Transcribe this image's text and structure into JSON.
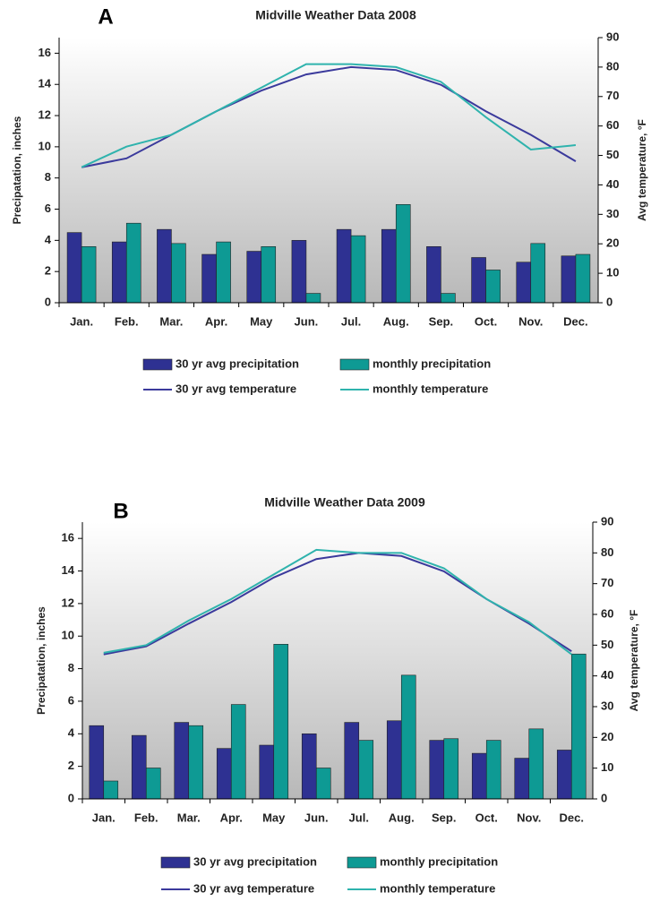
{
  "chart_data": [
    {
      "type": "bar",
      "panel_label": "A",
      "title": "Midville Weather Data 2008",
      "y_label": "Precipatation, inches",
      "y2_label": "Avg temperature, °F",
      "categories": [
        "Jan.",
        "Feb.",
        "Mar.",
        "Apr.",
        "May",
        "Jun.",
        "Jul.",
        "Aug.",
        "Sep.",
        "Oct.",
        "Nov.",
        "Dec."
      ],
      "ylim": [
        0,
        17
      ],
      "yticks": [
        0,
        2,
        4,
        6,
        8,
        10,
        12,
        14,
        16
      ],
      "y2lim": [
        0,
        90
      ],
      "y2ticks": [
        0,
        10,
        20,
        30,
        40,
        50,
        60,
        70,
        80,
        90
      ],
      "series": [
        {
          "name": "30 yr avg precipitation",
          "type": "bar",
          "color": "#2e3192",
          "values": [
            4.5,
            3.9,
            4.7,
            3.1,
            3.3,
            4.0,
            4.7,
            4.7,
            3.6,
            2.9,
            2.6,
            3.0
          ]
        },
        {
          "name": "monthly precipitation",
          "type": "bar",
          "color": "#0e9a94",
          "values": [
            3.6,
            5.1,
            3.8,
            3.9,
            3.6,
            0.6,
            4.3,
            6.3,
            0.6,
            2.1,
            3.8,
            3.1
          ]
        },
        {
          "name": "30 yr avg temperature",
          "type": "line",
          "axis": "y2",
          "color": "#3b3a9c",
          "values": [
            46,
            49,
            57,
            65,
            72,
            77.5,
            80,
            79,
            74,
            65,
            57,
            48
          ]
        },
        {
          "name": "monthly temperature",
          "type": "line",
          "axis": "y2",
          "color": "#2fb3ad",
          "values": [
            46,
            53,
            57,
            65,
            73,
            81,
            81,
            80,
            75,
            63,
            52,
            53.5
          ]
        }
      ]
    },
    {
      "type": "bar",
      "panel_label": "B",
      "title": "Midville Weather Data 2009",
      "y_label": "Precipatation, inches",
      "y2_label": "Avg temperature, °F",
      "categories": [
        "Jan.",
        "Feb.",
        "Mar.",
        "Apr.",
        "May",
        "Jun.",
        "Jul.",
        "Aug.",
        "Sep.",
        "Oct.",
        "Nov.",
        "Dec."
      ],
      "ylim": [
        0,
        17
      ],
      "yticks": [
        0,
        2,
        4,
        6,
        8,
        10,
        12,
        14,
        16
      ],
      "y2lim": [
        0,
        90
      ],
      "y2ticks": [
        0,
        10,
        20,
        30,
        40,
        50,
        60,
        70,
        80,
        90
      ],
      "series": [
        {
          "name": "30 yr avg precipitation",
          "type": "bar",
          "color": "#2e3192",
          "values": [
            4.5,
            3.9,
            4.7,
            3.1,
            3.3,
            4.0,
            4.7,
            4.8,
            3.6,
            2.8,
            2.5,
            3.0
          ]
        },
        {
          "name": "monthly precipitation",
          "type": "bar",
          "color": "#0e9a94",
          "values": [
            1.1,
            1.9,
            4.5,
            5.8,
            9.5,
            1.9,
            3.6,
            7.6,
            3.7,
            3.6,
            4.3,
            8.9
          ]
        },
        {
          "name": "30 yr avg temperature",
          "type": "line",
          "axis": "y2",
          "color": "#3b3a9c",
          "values": [
            47,
            49.6,
            57,
            64,
            72,
            78,
            80,
            79,
            74,
            65,
            57,
            48
          ]
        },
        {
          "name": "monthly temperature",
          "type": "line",
          "axis": "y2",
          "color": "#2fb3ad",
          "values": [
            47.5,
            50,
            58,
            65,
            73,
            81,
            80,
            80,
            75,
            65,
            57.5,
            47
          ]
        }
      ]
    }
  ]
}
